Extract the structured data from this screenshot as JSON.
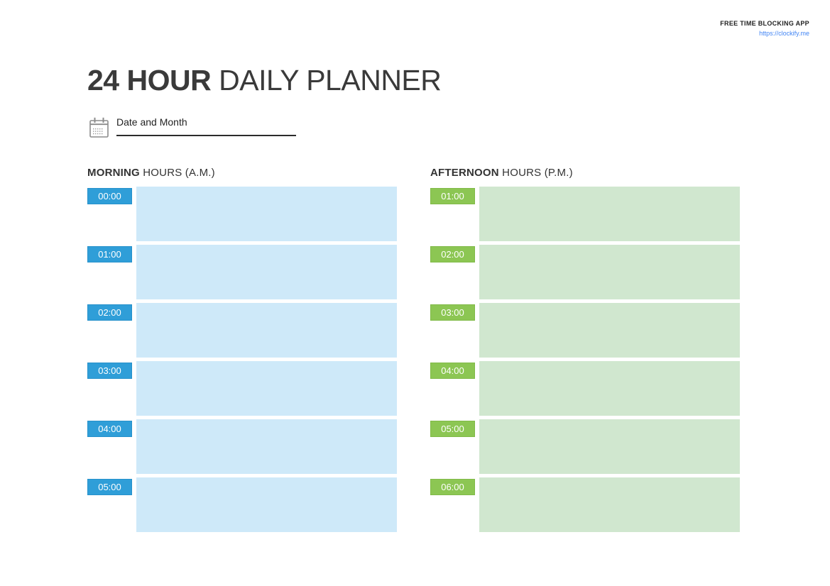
{
  "brand": {
    "tagline": "FREE TIME BLOCKING APP",
    "url": "https://clockify.me",
    "link_color": "#4285f4"
  },
  "title": {
    "bold": "24 HOUR",
    "regular": " DAILY PLANNER"
  },
  "date_field": {
    "label": "Date and Month",
    "value": ""
  },
  "columns": [
    {
      "id": "morning",
      "heading_bold": "MORNING",
      "heading_rest": " HOURS (A.M.)",
      "badge_color": "#2f9ed8",
      "badge_border": "#2691cb",
      "block_color": "#cee9f9",
      "times": [
        "00:00",
        "01:00",
        "02:00",
        "03:00",
        "04:00",
        "05:00"
      ]
    },
    {
      "id": "afternoon",
      "heading_bold": "AFTERNOON",
      "heading_rest": " HOURS (P.M.)",
      "badge_color": "#8cc653",
      "badge_border": "#81ba48",
      "block_color": "#d0e7cf",
      "times": [
        "01:00",
        "02:00",
        "03:00",
        "04:00",
        "05:00",
        "06:00"
      ]
    }
  ],
  "icons": {
    "calendar": "calendar-icon"
  }
}
